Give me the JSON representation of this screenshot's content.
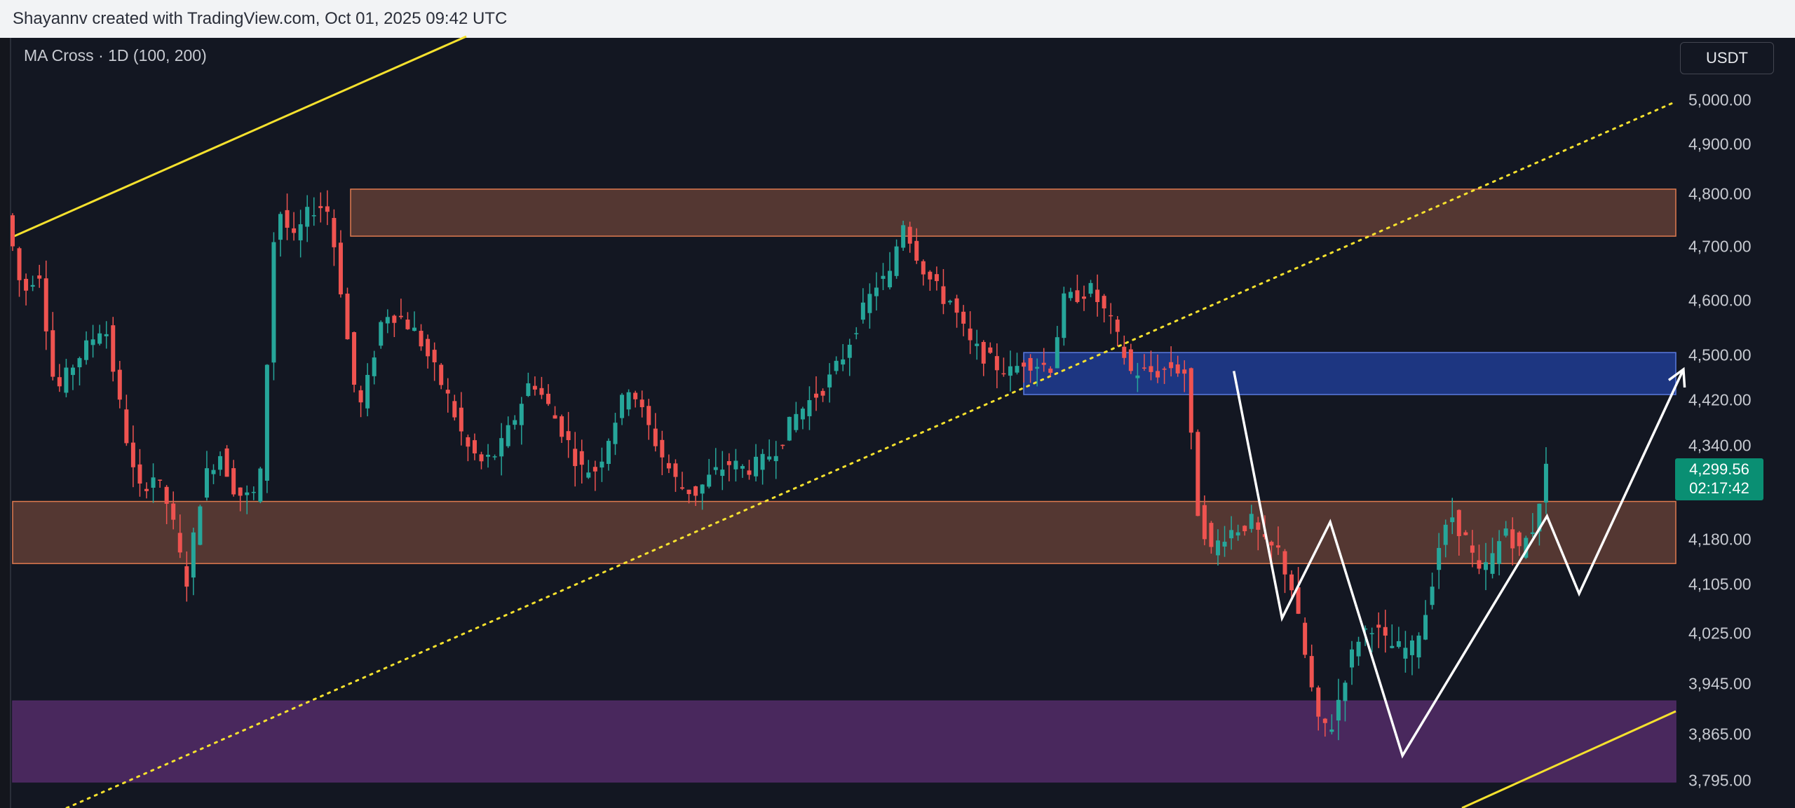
{
  "header": {
    "caption": "Shayannv created with TradingView.com, Oct 01, 2025 09:42 UTC"
  },
  "indicator": {
    "label": "MA Cross · 1D (100, 200)"
  },
  "currency": "USDT",
  "last_price": {
    "price": "4,299.56",
    "countdown": "02:17:42"
  },
  "colors": {
    "background": "#131722",
    "candle_up": "#26a69a",
    "candle_down": "#ef5350",
    "resistance_zone": "#5a3b34",
    "zone_border": "#e07a4f",
    "blue_zone": "#1e3a8a",
    "purple_zone": "#4e2a63",
    "channel_line": "#f5e12e",
    "pattern_line": "#ffffff",
    "price_tag": "#0a8f73"
  },
  "chart_data": {
    "type": "candlestick",
    "y_axis_ticks": [
      {
        "value": 5000,
        "label": "5,000.00"
      },
      {
        "value": 4900,
        "label": "4,900.00"
      },
      {
        "value": 4800,
        "label": "4,800.00"
      },
      {
        "value": 4700,
        "label": "4,700.00"
      },
      {
        "value": 4600,
        "label": "4,600.00"
      },
      {
        "value": 4500,
        "label": "4,500.00"
      },
      {
        "value": 4420,
        "label": "4,420.00"
      },
      {
        "value": 4340,
        "label": "4,340.00"
      },
      {
        "value": 4180,
        "label": "4,180.00"
      },
      {
        "value": 4105,
        "label": "4,105.00"
      },
      {
        "value": 4025,
        "label": "4,025.00"
      },
      {
        "value": 3945,
        "label": "3,945.00"
      },
      {
        "value": 3865,
        "label": "3,865.00"
      },
      {
        "value": 3795,
        "label": "3,795.00"
      }
    ],
    "zones": [
      {
        "name": "upper-supply-zone",
        "from": 4720,
        "to": 4810,
        "color": "#5a3b34",
        "border": "#e07a4f"
      },
      {
        "name": "blue-supply-zone",
        "from": 4430,
        "to": 4505,
        "color": "#1e3a8a",
        "border": "#5b7be0"
      },
      {
        "name": "mid-support-zone",
        "from": 4140,
        "to": 4245,
        "color": "#5a3b34",
        "border": "#e07a4f"
      },
      {
        "name": "purple-demand-zone",
        "from": 3793,
        "to": 3918,
        "color": "#4e2a63",
        "border": "#4e2a63"
      }
    ],
    "candle_count": 230,
    "last_price": 4299.56,
    "pattern_points": [
      {
        "bar": 174,
        "price": 4472
      },
      {
        "bar": 180,
        "price": 4050
      },
      {
        "bar": 186,
        "price": 4210
      },
      {
        "bar": 195,
        "price": 3833
      },
      {
        "bar": 213,
        "price": 4220
      },
      {
        "bar": 217,
        "price": 4090
      },
      {
        "bar": 230,
        "price": 4475
      }
    ]
  }
}
